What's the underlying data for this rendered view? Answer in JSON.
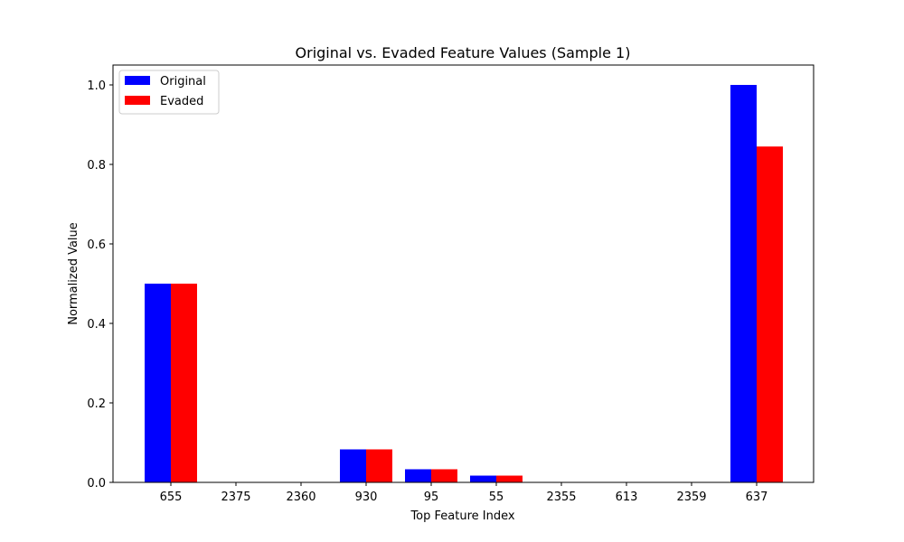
{
  "chart_data": {
    "type": "bar",
    "title": "Original vs. Evaded Feature Values (Sample 1)",
    "xlabel": "Top Feature Index",
    "ylabel": "Normalized Value",
    "categories": [
      "655",
      "2375",
      "2360",
      "930",
      "95",
      "55",
      "2355",
      "613",
      "2359",
      "637"
    ],
    "series": [
      {
        "name": "Original",
        "color": "#0000ff",
        "values": [
          0.5,
          0,
          0,
          0.083,
          0.033,
          0.017,
          0,
          0,
          0,
          1.0
        ]
      },
      {
        "name": "Evaded",
        "color": "#ff0000",
        "values": [
          0.5,
          0,
          0,
          0.083,
          0.033,
          0.017,
          0,
          0,
          0,
          0.845
        ]
      }
    ],
    "ylim": [
      0,
      1.05
    ],
    "yticks": [
      "0.0",
      "0.2",
      "0.4",
      "0.6",
      "0.8",
      "1.0"
    ],
    "grid": false,
    "legend": "top-left"
  }
}
